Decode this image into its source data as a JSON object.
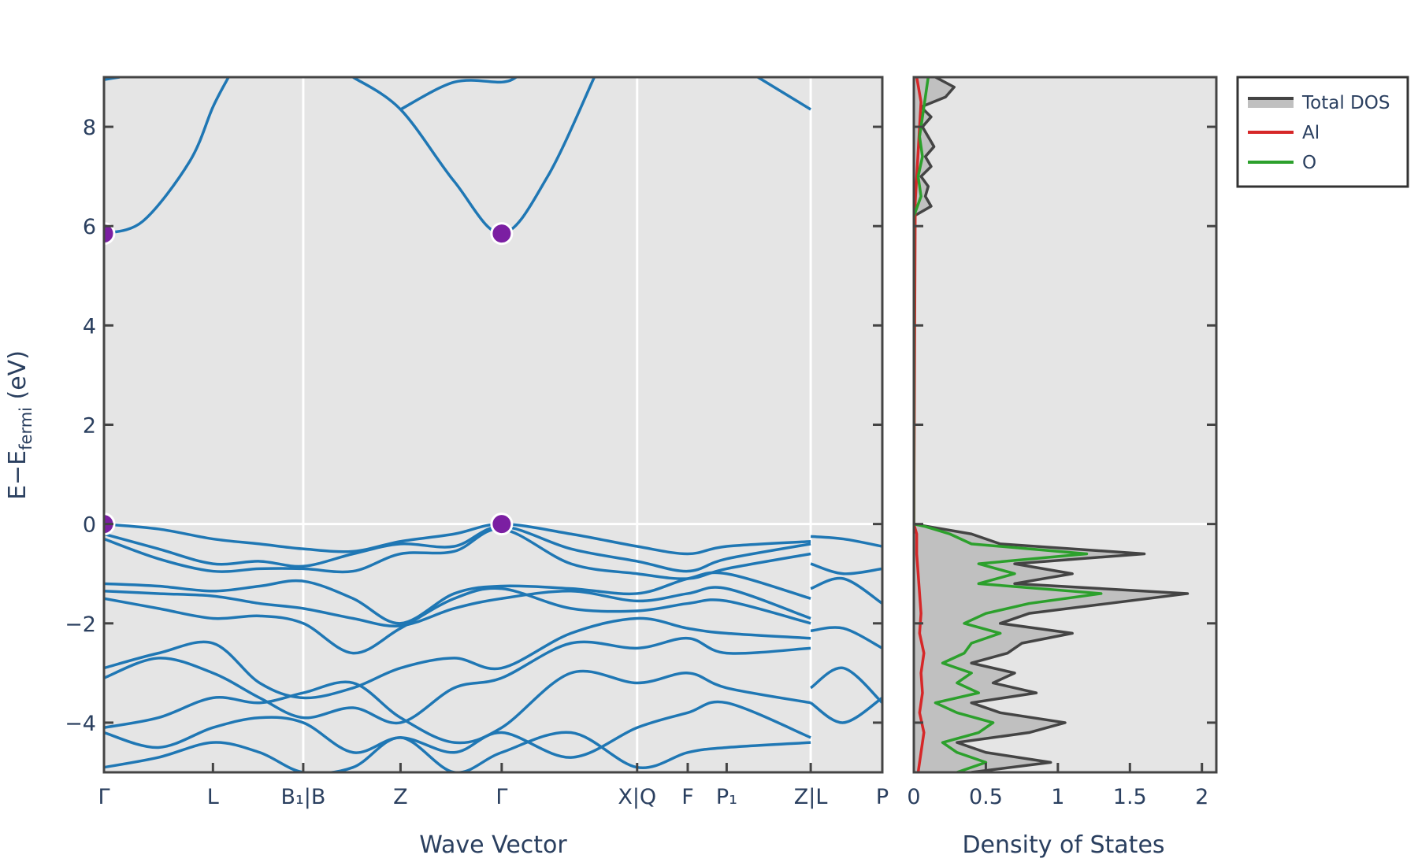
{
  "chart_data": [
    {
      "type": "line",
      "panel": "band-structure",
      "xlabel": "Wave Vector",
      "ylabel": "E−E",
      "ylabel_sub": "fermi",
      "ylabel_unit": " (eV)",
      "ylim": [
        -5,
        9
      ],
      "yticks": [
        -4,
        -2,
        0,
        2,
        4,
        6,
        8
      ],
      "ytick_labels": [
        "−4",
        "−2",
        "0",
        "2",
        "4",
        "6",
        "8"
      ],
      "grid": false,
      "kpath": [
        {
          "label": "Γ",
          "k": 0.0
        },
        {
          "label": "L",
          "k": 0.14
        },
        {
          "label": "B₁|B",
          "k": 0.256
        },
        {
          "label": "Z",
          "k": 0.381
        },
        {
          "label": "Γ",
          "k": 0.511
        },
        {
          "label": "X|Q",
          "k": 0.685
        },
        {
          "label": "F",
          "k": 0.75
        },
        {
          "label": "P₁",
          "k": 0.8
        },
        {
          "label": "Z|L",
          "k": 0.908
        },
        {
          "label": "P",
          "k": 1.0
        }
      ],
      "segment_breaks": [
        0.256,
        0.685,
        0.908
      ],
      "band_color": "#1f77b4",
      "extrema_color": "#7b1fa2",
      "extrema": [
        {
          "k": 0.0,
          "E": 0.0
        },
        {
          "k": 0.511,
          "E": 0.0
        },
        {
          "k": 0.0,
          "E": 5.85
        },
        {
          "k": 0.511,
          "E": 5.85
        }
      ],
      "bands": [
        {
          "k": [
            0,
            0.07,
            0.14,
            0.2,
            0.256,
            0.32,
            0.381,
            0.45,
            0.511,
            0.6,
            0.685,
            0.75,
            0.8,
            0.908
          ],
          "E": [
            0,
            -0.1,
            -0.3,
            -0.4,
            -0.5,
            -0.55,
            -0.35,
            -0.2,
            0,
            -0.2,
            -0.45,
            -0.6,
            -0.45,
            -0.35
          ]
        },
        {
          "k": [
            0,
            0.07,
            0.14,
            0.2,
            0.256,
            0.32,
            0.381,
            0.45,
            0.511,
            0.6,
            0.685,
            0.75,
            0.8,
            0.908
          ],
          "E": [
            -0.2,
            -0.5,
            -0.8,
            -0.75,
            -0.85,
            -0.6,
            -0.4,
            -0.45,
            -0.05,
            -0.5,
            -0.75,
            -0.95,
            -0.7,
            -0.4
          ]
        },
        {
          "k": [
            0,
            0.07,
            0.14,
            0.2,
            0.256,
            0.32,
            0.381,
            0.45,
            0.511,
            0.6,
            0.685,
            0.75,
            0.8,
            0.908
          ],
          "E": [
            -0.3,
            -0.7,
            -0.95,
            -0.9,
            -0.9,
            -0.95,
            -0.6,
            -0.55,
            -0.1,
            -0.8,
            -1.0,
            -1.1,
            -0.9,
            -0.6
          ]
        },
        {
          "k": [
            0,
            0.07,
            0.14,
            0.2,
            0.256,
            0.32,
            0.381,
            0.45,
            0.511,
            0.6,
            0.685,
            0.75,
            0.8,
            0.908
          ],
          "E": [
            -1.2,
            -1.25,
            -1.35,
            -1.25,
            -1.15,
            -1.5,
            -2.0,
            -1.4,
            -1.25,
            -1.3,
            -1.4,
            -1.1,
            -1.0,
            -1.5
          ]
        },
        {
          "k": [
            0,
            0.07,
            0.14,
            0.2,
            0.256,
            0.32,
            0.381,
            0.45,
            0.511,
            0.6,
            0.685,
            0.75,
            0.8,
            0.908
          ],
          "E": [
            -1.35,
            -1.4,
            -1.45,
            -1.6,
            -1.7,
            -1.9,
            -2.05,
            -1.7,
            -1.5,
            -1.35,
            -1.55,
            -1.4,
            -1.3,
            -1.9
          ]
        },
        {
          "k": [
            0,
            0.07,
            0.14,
            0.2,
            0.256,
            0.32,
            0.381,
            0.45,
            0.511,
            0.6,
            0.685,
            0.75,
            0.8,
            0.908
          ],
          "E": [
            -1.5,
            -1.7,
            -1.9,
            -1.85,
            -2.0,
            -2.6,
            -2.1,
            -1.5,
            -1.3,
            -1.7,
            -1.75,
            -1.6,
            -1.55,
            -2.0
          ]
        },
        {
          "k": [
            0,
            0.07,
            0.14,
            0.2,
            0.256,
            0.32,
            0.381,
            0.45,
            0.511,
            0.6,
            0.685,
            0.75,
            0.8,
            0.908
          ],
          "E": [
            -2.9,
            -2.6,
            -2.4,
            -3.2,
            -3.5,
            -3.3,
            -2.9,
            -2.7,
            -2.9,
            -2.2,
            -1.9,
            -2.1,
            -2.2,
            -2.3
          ]
        },
        {
          "k": [
            0,
            0.07,
            0.14,
            0.2,
            0.256,
            0.32,
            0.381,
            0.45,
            0.511,
            0.6,
            0.685,
            0.75,
            0.8,
            0.908
          ],
          "E": [
            -3.1,
            -2.7,
            -3.0,
            -3.5,
            -3.9,
            -3.7,
            -4.0,
            -3.3,
            -3.1,
            -2.4,
            -2.5,
            -2.3,
            -2.6,
            -2.5
          ]
        },
        {
          "k": [
            0,
            0.07,
            0.14,
            0.2,
            0.256,
            0.32,
            0.381,
            0.45,
            0.511,
            0.6,
            0.685,
            0.75,
            0.8,
            0.908
          ],
          "E": [
            -4.1,
            -3.9,
            -3.5,
            -3.6,
            -3.4,
            -3.2,
            -3.9,
            -4.4,
            -4.1,
            -3.0,
            -3.2,
            -3.0,
            -3.3,
            -3.6
          ]
        },
        {
          "k": [
            0,
            0.07,
            0.14,
            0.2,
            0.256,
            0.32,
            0.381,
            0.45,
            0.511,
            0.6,
            0.685,
            0.75,
            0.8,
            0.908
          ],
          "E": [
            -4.2,
            -4.5,
            -4.1,
            -3.9,
            -4.0,
            -4.6,
            -4.3,
            -4.6,
            -4.2,
            -4.7,
            -4.1,
            -3.8,
            -3.6,
            -4.3
          ]
        },
        {
          "k": [
            0,
            0.07,
            0.14,
            0.2,
            0.256,
            0.32,
            0.381,
            0.45,
            0.511,
            0.6,
            0.685,
            0.75,
            0.8,
            0.908
          ],
          "E": [
            -4.9,
            -4.7,
            -4.4,
            -4.6,
            -5.0,
            -4.9,
            -4.3,
            -5.0,
            -4.6,
            -4.2,
            -4.9,
            -4.6,
            -4.5,
            -4.4
          ]
        },
        {
          "k": [
            0,
            0.05,
            0.11,
            0.14,
            0.16
          ],
          "E": [
            5.85,
            6.1,
            7.3,
            8.4,
            9.0
          ]
        },
        {
          "k": [
            0.32,
            0.381,
            0.45,
            0.511,
            0.57,
            0.63
          ],
          "E": [
            9.0,
            8.35,
            6.9,
            5.85,
            7.0,
            9.0
          ]
        },
        {
          "k": [
            0.381,
            0.45,
            0.511,
            0.53
          ],
          "E": [
            8.35,
            8.9,
            8.9,
            9.0
          ]
        },
        {
          "k": [
            0.84,
            0.908
          ],
          "E": [
            9.0,
            8.35
          ]
        },
        {
          "k": [
            0,
            0.02
          ],
          "E": [
            8.95,
            9.0
          ]
        },
        {
          "k": [
            0.908,
            0.95,
            1.0
          ],
          "E": [
            -0.25,
            -0.3,
            -0.45
          ]
        },
        {
          "k": [
            0.908,
            0.95,
            1.0
          ],
          "E": [
            -0.8,
            -1.0,
            -0.9
          ]
        },
        {
          "k": [
            0.908,
            0.95,
            1.0
          ],
          "E": [
            -1.3,
            -1.1,
            -1.6
          ]
        },
        {
          "k": [
            0.908,
            0.95,
            1.0
          ],
          "E": [
            -2.15,
            -2.1,
            -2.5
          ]
        },
        {
          "k": [
            0.908,
            0.95,
            1.0
          ],
          "E": [
            -3.3,
            -2.9,
            -3.6
          ]
        },
        {
          "k": [
            0.908,
            0.95,
            1.0
          ],
          "E": [
            -3.6,
            -4.0,
            -3.5
          ]
        }
      ]
    },
    {
      "type": "line",
      "panel": "density-of-states",
      "xlabel": "Density of States",
      "xlim": [
        0,
        2.1
      ],
      "xticks": [
        0,
        0.5,
        1,
        1.5,
        2
      ],
      "xtick_labels": [
        "0",
        "0.5",
        "1",
        "1.5",
        "2"
      ],
      "ylim": [
        -5,
        9
      ],
      "legend_position": "outside-right",
      "series": [
        {
          "name": "Total DOS",
          "color": "#444444",
          "fill": "#c0c0c0",
          "E": [
            -5.0,
            -4.8,
            -4.6,
            -4.4,
            -4.2,
            -4.0,
            -3.8,
            -3.6,
            -3.4,
            -3.2,
            -3.0,
            -2.8,
            -2.6,
            -2.4,
            -2.2,
            -2.0,
            -1.8,
            -1.6,
            -1.4,
            -1.2,
            -1.0,
            -0.8,
            -0.6,
            -0.4,
            -0.2,
            -0.05,
            0.0,
            6.2,
            6.4,
            6.6,
            6.8,
            7.0,
            7.2,
            7.4,
            7.6,
            7.8,
            8.0,
            8.2,
            8.4,
            8.6,
            8.8,
            9.0
          ],
          "dos": [
            0.4,
            0.95,
            0.5,
            0.3,
            0.8,
            1.05,
            0.6,
            0.4,
            0.85,
            0.55,
            0.7,
            0.4,
            0.65,
            0.75,
            1.1,
            0.6,
            0.8,
            1.35,
            1.9,
            0.7,
            1.1,
            0.7,
            1.6,
            0.6,
            0.4,
            0.1,
            0.0,
            0.0,
            0.12,
            0.08,
            0.1,
            0.05,
            0.12,
            0.08,
            0.14,
            0.1,
            0.06,
            0.12,
            0.05,
            0.22,
            0.28,
            0.15
          ]
        },
        {
          "name": "Al",
          "color": "#d62728",
          "E": [
            -5.0,
            -4.6,
            -4.2,
            -3.8,
            -3.4,
            -3.0,
            -2.6,
            -2.2,
            -1.8,
            -1.4,
            -1.0,
            -0.6,
            -0.2,
            0.0,
            6.5,
            7.5,
            8.5,
            9.0
          ],
          "dos": [
            0.03,
            0.05,
            0.07,
            0.04,
            0.06,
            0.05,
            0.07,
            0.04,
            0.05,
            0.04,
            0.03,
            0.02,
            0.02,
            0.0,
            0.01,
            0.03,
            0.05,
            0.02
          ]
        },
        {
          "name": "O",
          "color": "#2ca02c",
          "E": [
            -5.0,
            -4.8,
            -4.6,
            -4.4,
            -4.2,
            -4.0,
            -3.8,
            -3.6,
            -3.4,
            -3.2,
            -3.0,
            -2.8,
            -2.6,
            -2.4,
            -2.2,
            -2.0,
            -1.8,
            -1.6,
            -1.4,
            -1.2,
            -1.0,
            -0.8,
            -0.6,
            -0.4,
            -0.2,
            -0.05,
            0.0,
            6.2,
            6.6,
            7.0,
            7.4,
            7.8,
            8.2,
            8.6,
            9.0
          ],
          "dos": [
            0.3,
            0.5,
            0.3,
            0.2,
            0.45,
            0.55,
            0.3,
            0.15,
            0.45,
            0.3,
            0.4,
            0.2,
            0.35,
            0.4,
            0.6,
            0.35,
            0.5,
            0.8,
            1.3,
            0.45,
            0.7,
            0.45,
            1.2,
            0.4,
            0.25,
            0.08,
            0.0,
            0.0,
            0.05,
            0.03,
            0.06,
            0.04,
            0.06,
            0.08,
            0.1
          ]
        }
      ]
    }
  ]
}
